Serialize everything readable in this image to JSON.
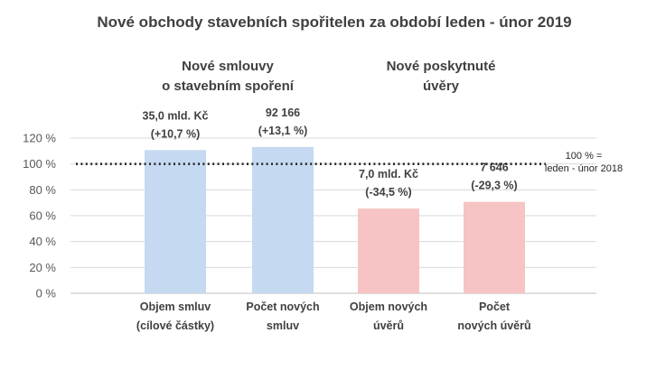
{
  "chart_data": {
    "type": "bar",
    "title": "Nové obchody stavebních spořitelen za období leden - únor 2019",
    "groups": [
      {
        "lines": [
          "Nové smlouvy",
          "o stavebním spoření"
        ]
      },
      {
        "lines": [
          "Nové poskytnuté",
          "úvěry"
        ]
      }
    ],
    "categories": [
      [
        "Objem smluv",
        "(cílové částky)"
      ],
      [
        "Počet  nových",
        "smluv"
      ],
      [
        "Objem nových",
        "úvěrů"
      ],
      [
        "Počet",
        "nových úvěrů"
      ]
    ],
    "values": [
      110.7,
      113.1,
      65.5,
      70.7
    ],
    "data_labels": [
      [
        "35,0 mld. Kč",
        "(+10,7 %)"
      ],
      [
        "92 166",
        "(+13,1 %)"
      ],
      [
        "7,0 mld. Kč",
        "(-34,5 %)"
      ],
      [
        "7 646",
        "(-29,3 %)"
      ]
    ],
    "bar_colors": [
      "#c5d9f1",
      "#c5d9f1",
      "#f6c4c4",
      "#f6c4c4"
    ],
    "yticks": [
      "0 %",
      "20 %",
      "40 %",
      "60 %",
      "80 %",
      "100 %",
      "120 %"
    ],
    "ylim": [
      0,
      120
    ],
    "grid": true,
    "reference_line": {
      "value": 100,
      "label_lines": [
        "100 % =",
        "leden - únor 2018"
      ]
    }
  }
}
